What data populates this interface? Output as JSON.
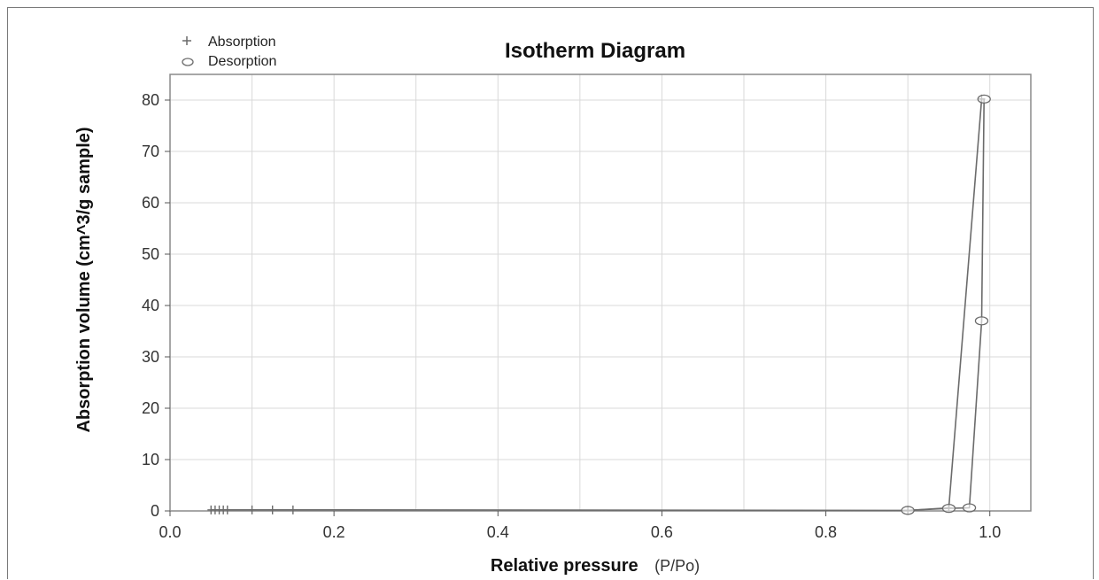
{
  "chart_data": {
    "type": "line",
    "title": "Isotherm Diagram",
    "xlabel": "Relative pressure",
    "xlabel_unit": "(P/Po)",
    "ylabel": "Absorption volume (cm^3/g sample)",
    "xlim": [
      0.0,
      1.05
    ],
    "ylim": [
      0,
      85
    ],
    "x_ticks": [
      "0.0",
      "0.2",
      "0.4",
      "0.6",
      "0.8",
      "1.0"
    ],
    "y_ticks": [
      "0",
      "10",
      "20",
      "30",
      "40",
      "50",
      "60",
      "70",
      "80"
    ],
    "grid": true,
    "legend_position": "top-left",
    "colors": {
      "line": "#6b6b6b",
      "grid": "#d9d9d9",
      "frame": "#8a8a8a"
    },
    "series": [
      {
        "name": "Absorption",
        "marker": "plus",
        "x": [
          0.05,
          0.055,
          0.06,
          0.065,
          0.07,
          0.1,
          0.125,
          0.15,
          0.9,
          0.95,
          0.99
        ],
        "y": [
          0.2,
          0.2,
          0.2,
          0.2,
          0.2,
          0.2,
          0.2,
          0.2,
          0.1,
          0.6,
          80.2
        ]
      },
      {
        "name": "Desorption",
        "marker": "circle",
        "x": [
          0.9,
          0.95,
          0.975,
          0.99,
          0.993
        ],
        "y": [
          0.1,
          0.5,
          0.6,
          37.0,
          80.2
        ]
      }
    ]
  }
}
